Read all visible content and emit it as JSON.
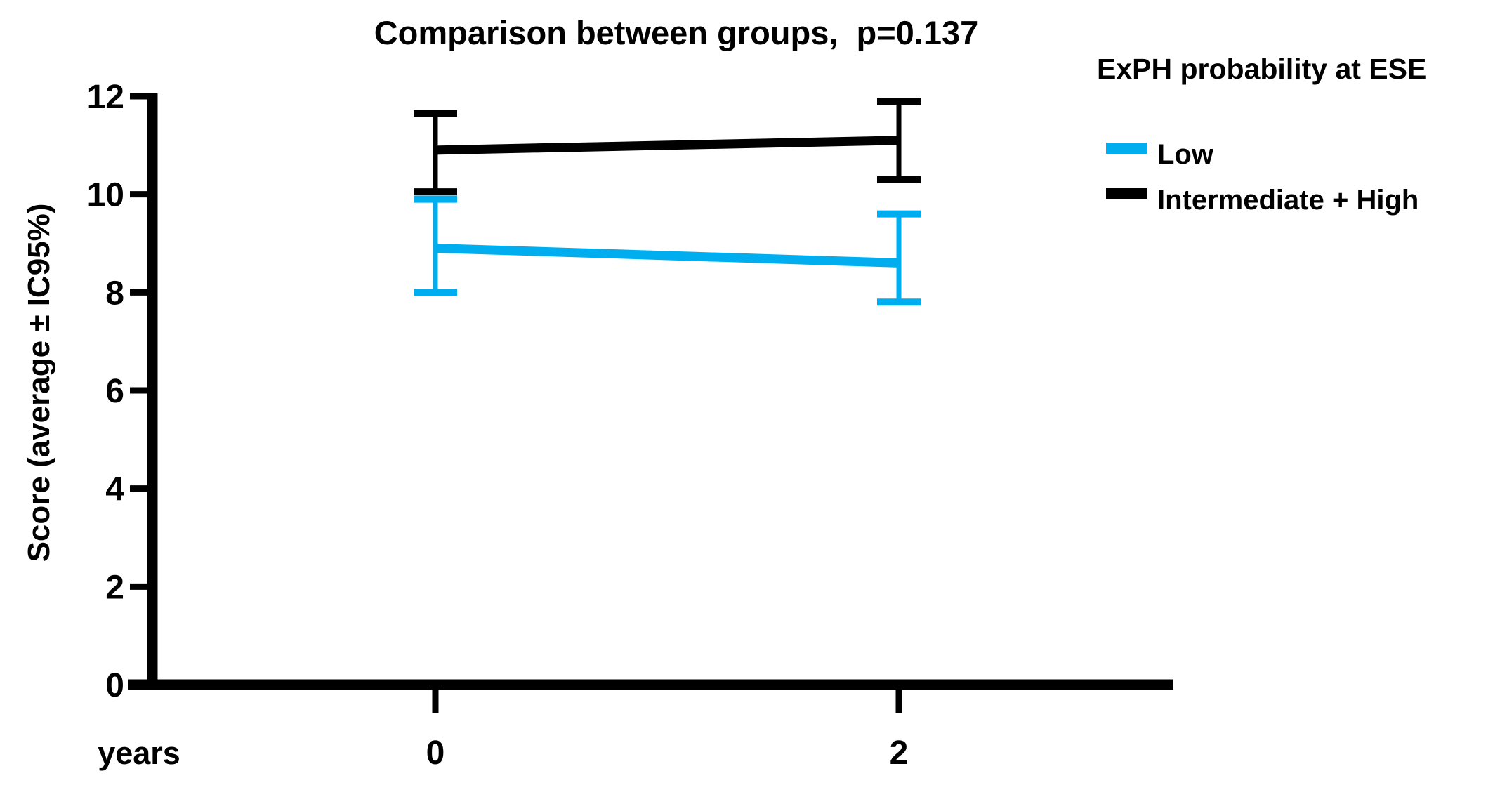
{
  "chart_data": {
    "type": "line",
    "title": "Comparison between groups,  p=0.137",
    "xlabel": "years",
    "ylabel": "Score (average ± IC95%)",
    "x": [
      0,
      2
    ],
    "xtick_labels": [
      "0",
      "2"
    ],
    "yticks": [
      0,
      2,
      4,
      6,
      8,
      10,
      12
    ],
    "ylim": [
      0,
      12
    ],
    "grid": false,
    "error_bars": "IC95%",
    "legend": {
      "title": "ExPH probability at ESE",
      "position": "top-right",
      "entries": [
        "Low",
        "Intermediate + High"
      ]
    },
    "series": [
      {
        "name": "Low",
        "color": "#00AEEF",
        "means": [
          8.9,
          8.6
        ],
        "ci_low": [
          8.0,
          7.8
        ],
        "ci_high": [
          9.9,
          9.6
        ]
      },
      {
        "name": "Intermediate + High",
        "color": "#000000",
        "means": [
          10.9,
          11.1
        ],
        "ci_low": [
          10.05,
          10.3
        ],
        "ci_high": [
          11.65,
          11.9
        ]
      }
    ],
    "colors": {
      "low": "#00AEEF",
      "intermediate_high": "#000000",
      "axis": "#000000",
      "background": "#ffffff"
    }
  }
}
